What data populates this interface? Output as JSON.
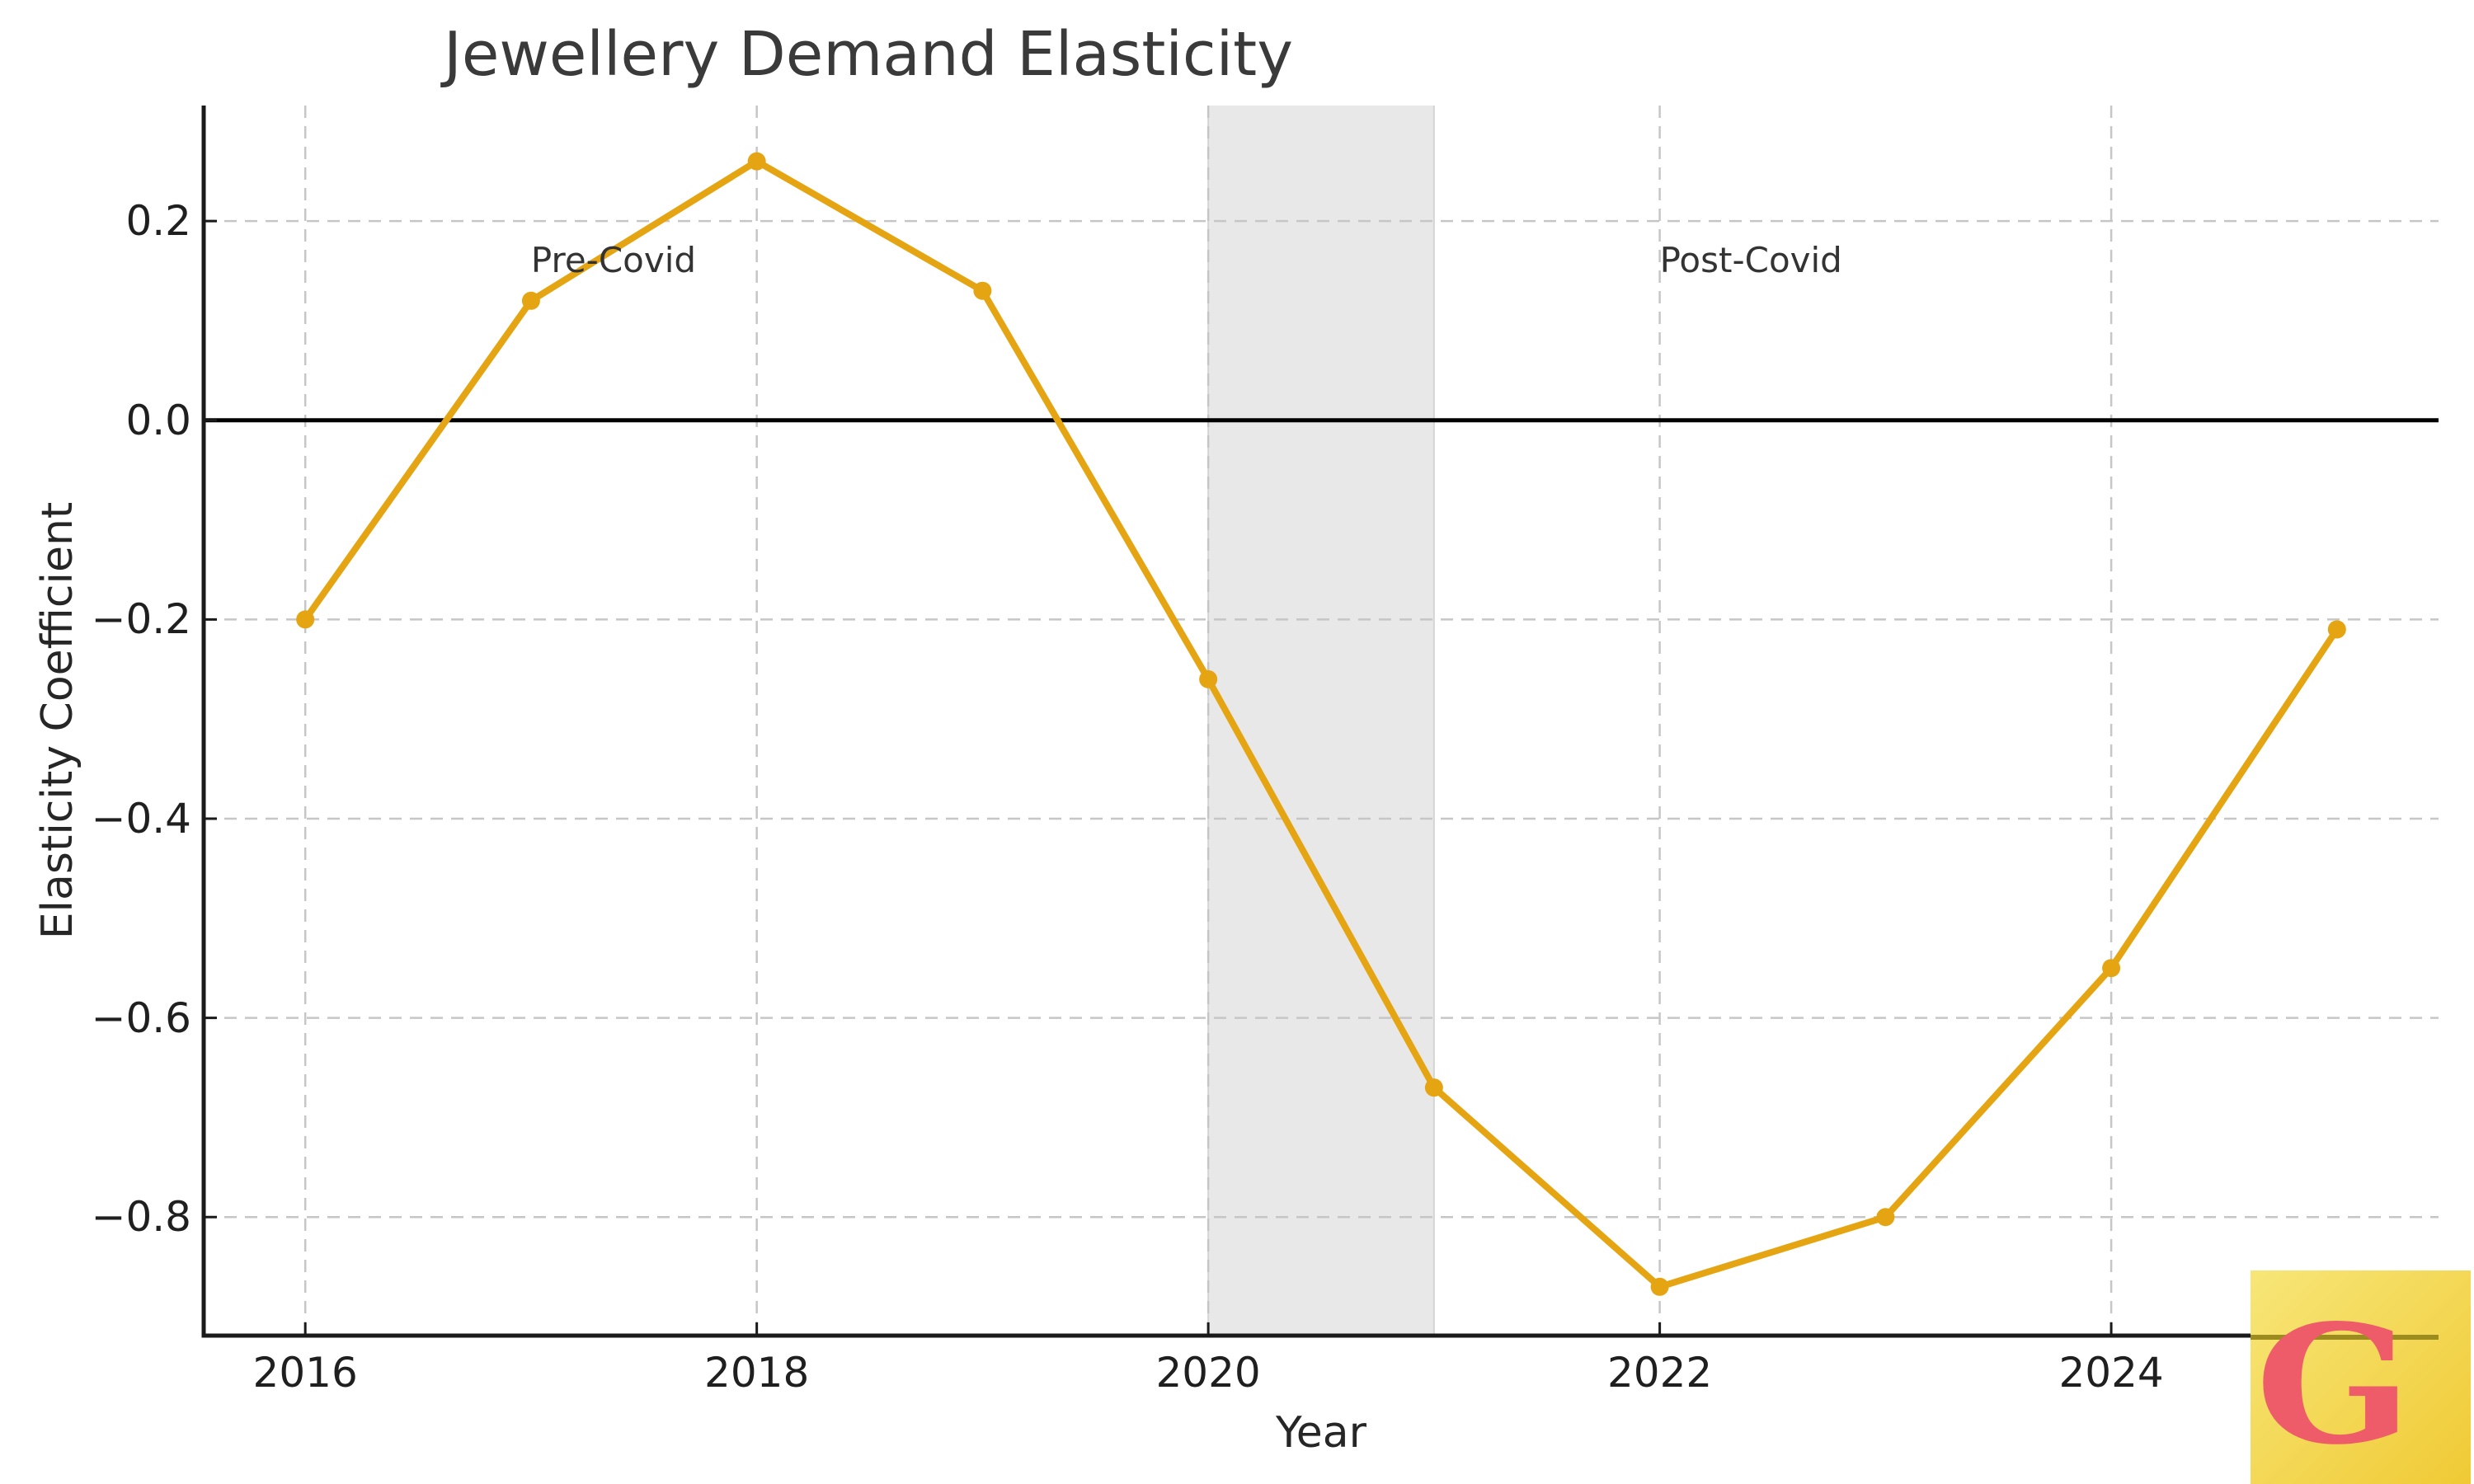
{
  "chart_data": {
    "type": "line",
    "title": "Jewellery Demand Elasticity",
    "xlabel": "Year",
    "ylabel": "Elasticity Coefficient",
    "x": [
      2016,
      2017,
      2018,
      2019,
      2020,
      2021,
      2022,
      2023,
      2024,
      2025
    ],
    "series": [
      {
        "name": "Elasticity Coefficient",
        "values": [
          -0.2,
          0.12,
          0.26,
          0.13,
          -0.26,
          -0.67,
          -0.87,
          -0.8,
          -0.55,
          -0.21
        ]
      }
    ],
    "xlim": [
      2015.55,
      2025.45
    ],
    "ylim": [
      -0.919,
      0.316
    ],
    "x_ticks": [
      2016,
      2018,
      2020,
      2022,
      2024
    ],
    "x_tick_labels": [
      "2016",
      "2018",
      "2020",
      "2022",
      "2024"
    ],
    "y_ticks": [
      0.2,
      0.0,
      -0.2,
      -0.4,
      -0.6,
      -0.8
    ],
    "y_tick_labels": [
      "0.2",
      "0.0",
      "−0.2",
      "−0.4",
      "−0.6",
      "−0.8"
    ],
    "grid": true,
    "grid_style": "dashed",
    "legend": false,
    "zero_line": true,
    "shaded_region": {
      "x_start": 2020,
      "x_end": 2021,
      "color": "#e8e8e8",
      "edge_color": "#d4d4d4"
    },
    "annotations": [
      {
        "text": "Pre-Covid",
        "x": 2017,
        "y": 0.15
      },
      {
        "text": "Post-Covid",
        "x": 2022,
        "y": 0.15
      }
    ],
    "line_color": "#E5A512",
    "marker": "circle",
    "grid_color": "#c6c6c6",
    "spine_color": "#1a1a1a",
    "zero_line_color": "#000000"
  },
  "logo": {
    "letter": "G",
    "letter_color": "#ee5c6a",
    "bg_top": "#f7e678",
    "bg_bottom": "#f0ca35",
    "line_color": "#9c8c20"
  }
}
